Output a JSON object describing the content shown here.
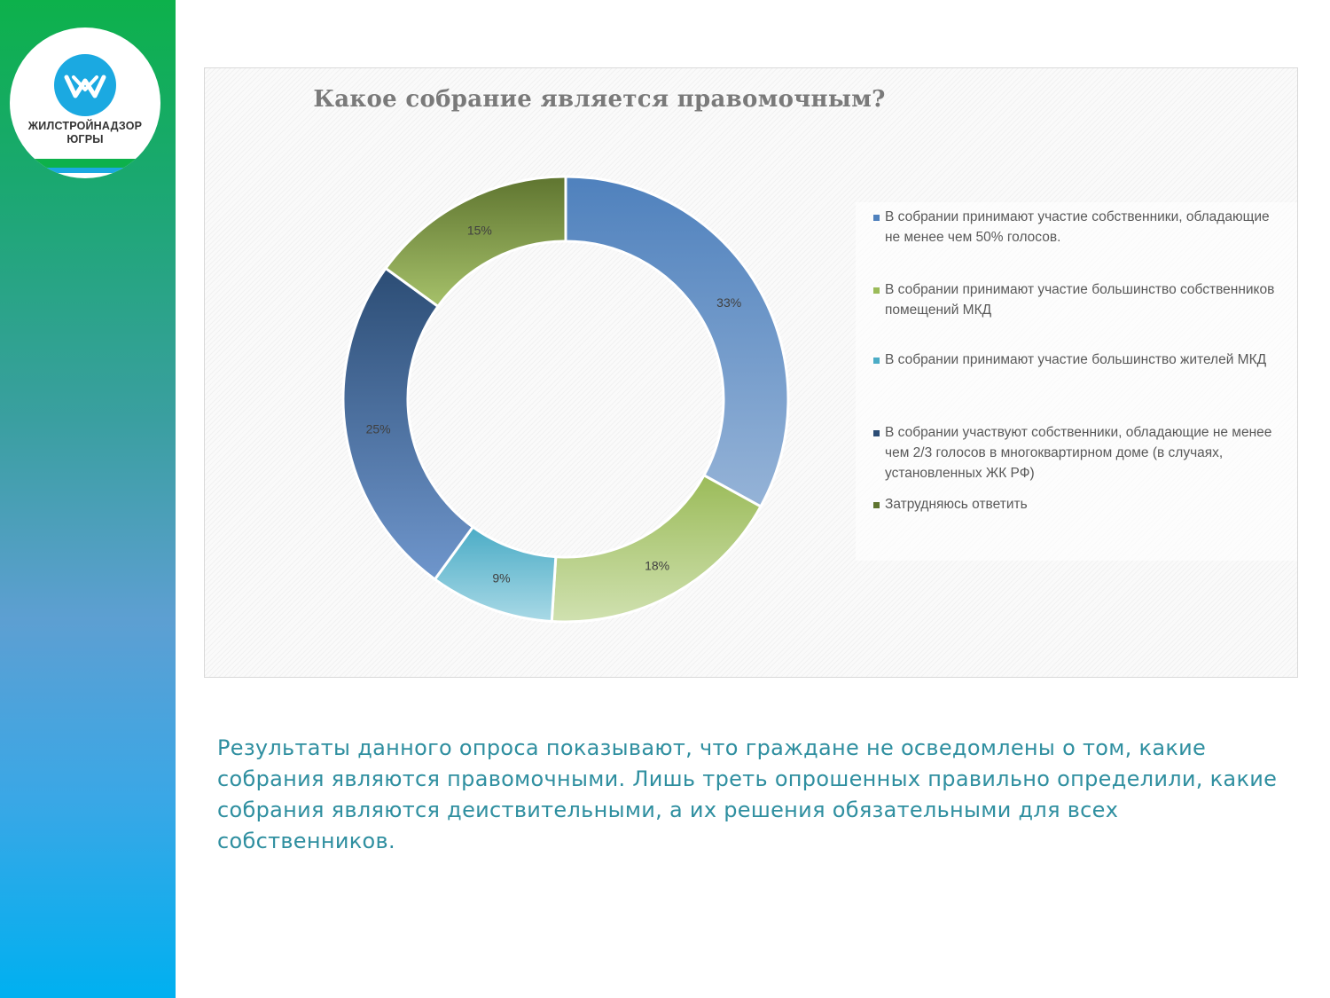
{
  "brand": {
    "name_line1": "ЖИЛСТРОЙНАДЗОР",
    "name_line2": "ЮГРЫ"
  },
  "colors": {
    "sidebar_top": "#0db14b",
    "sidebar_bottom": "#00b0f0",
    "summary_text": "#2f8fa0"
  },
  "chart_data": {
    "type": "pie",
    "variant": "doughnut",
    "title": "Какое собрание является правомочным?",
    "legend_position": "right",
    "slices": [
      {
        "label": "В собрании принимают участие собственники, обладающие не менее чем 50% голосов.",
        "value": 33,
        "value_label": "33%",
        "color_dark": "#4f81bd",
        "color_light": "#95b3d7"
      },
      {
        "label": "В собрании принимают участие большинство собственников помещений МКД",
        "value": 18,
        "value_label": "18%",
        "color_dark": "#9bbb59",
        "color_light": "#d0e1b0"
      },
      {
        "label": "В собрании принимают участие большинство жителей МКД",
        "value": 9,
        "value_label": "9%",
        "color_dark": "#4bacc6",
        "color_light": "#a9d9e6"
      },
      {
        "label": "В собрании участвуют собственники, обладающие не менее чем 2/3 голосов в многоквартирном доме (в случаях, установленных ЖК РФ)",
        "value": 25,
        "value_label": "25%",
        "color_dark": "#2c4d75",
        "color_light": "#6f96cc"
      },
      {
        "label": "Затрудняюсь ответить",
        "value": 15,
        "value_label": "15%",
        "color_dark": "#5f7530",
        "color_light": "#a6c16a"
      }
    ]
  },
  "summary": "Результаты данного опроса показывают, что граждане не осведомлены о том, какие собрания являются правомочными. Лишь треть опрошенных правильно определили, какие собрания являются деиствительными, а их решения обязательными для всех собственников."
}
